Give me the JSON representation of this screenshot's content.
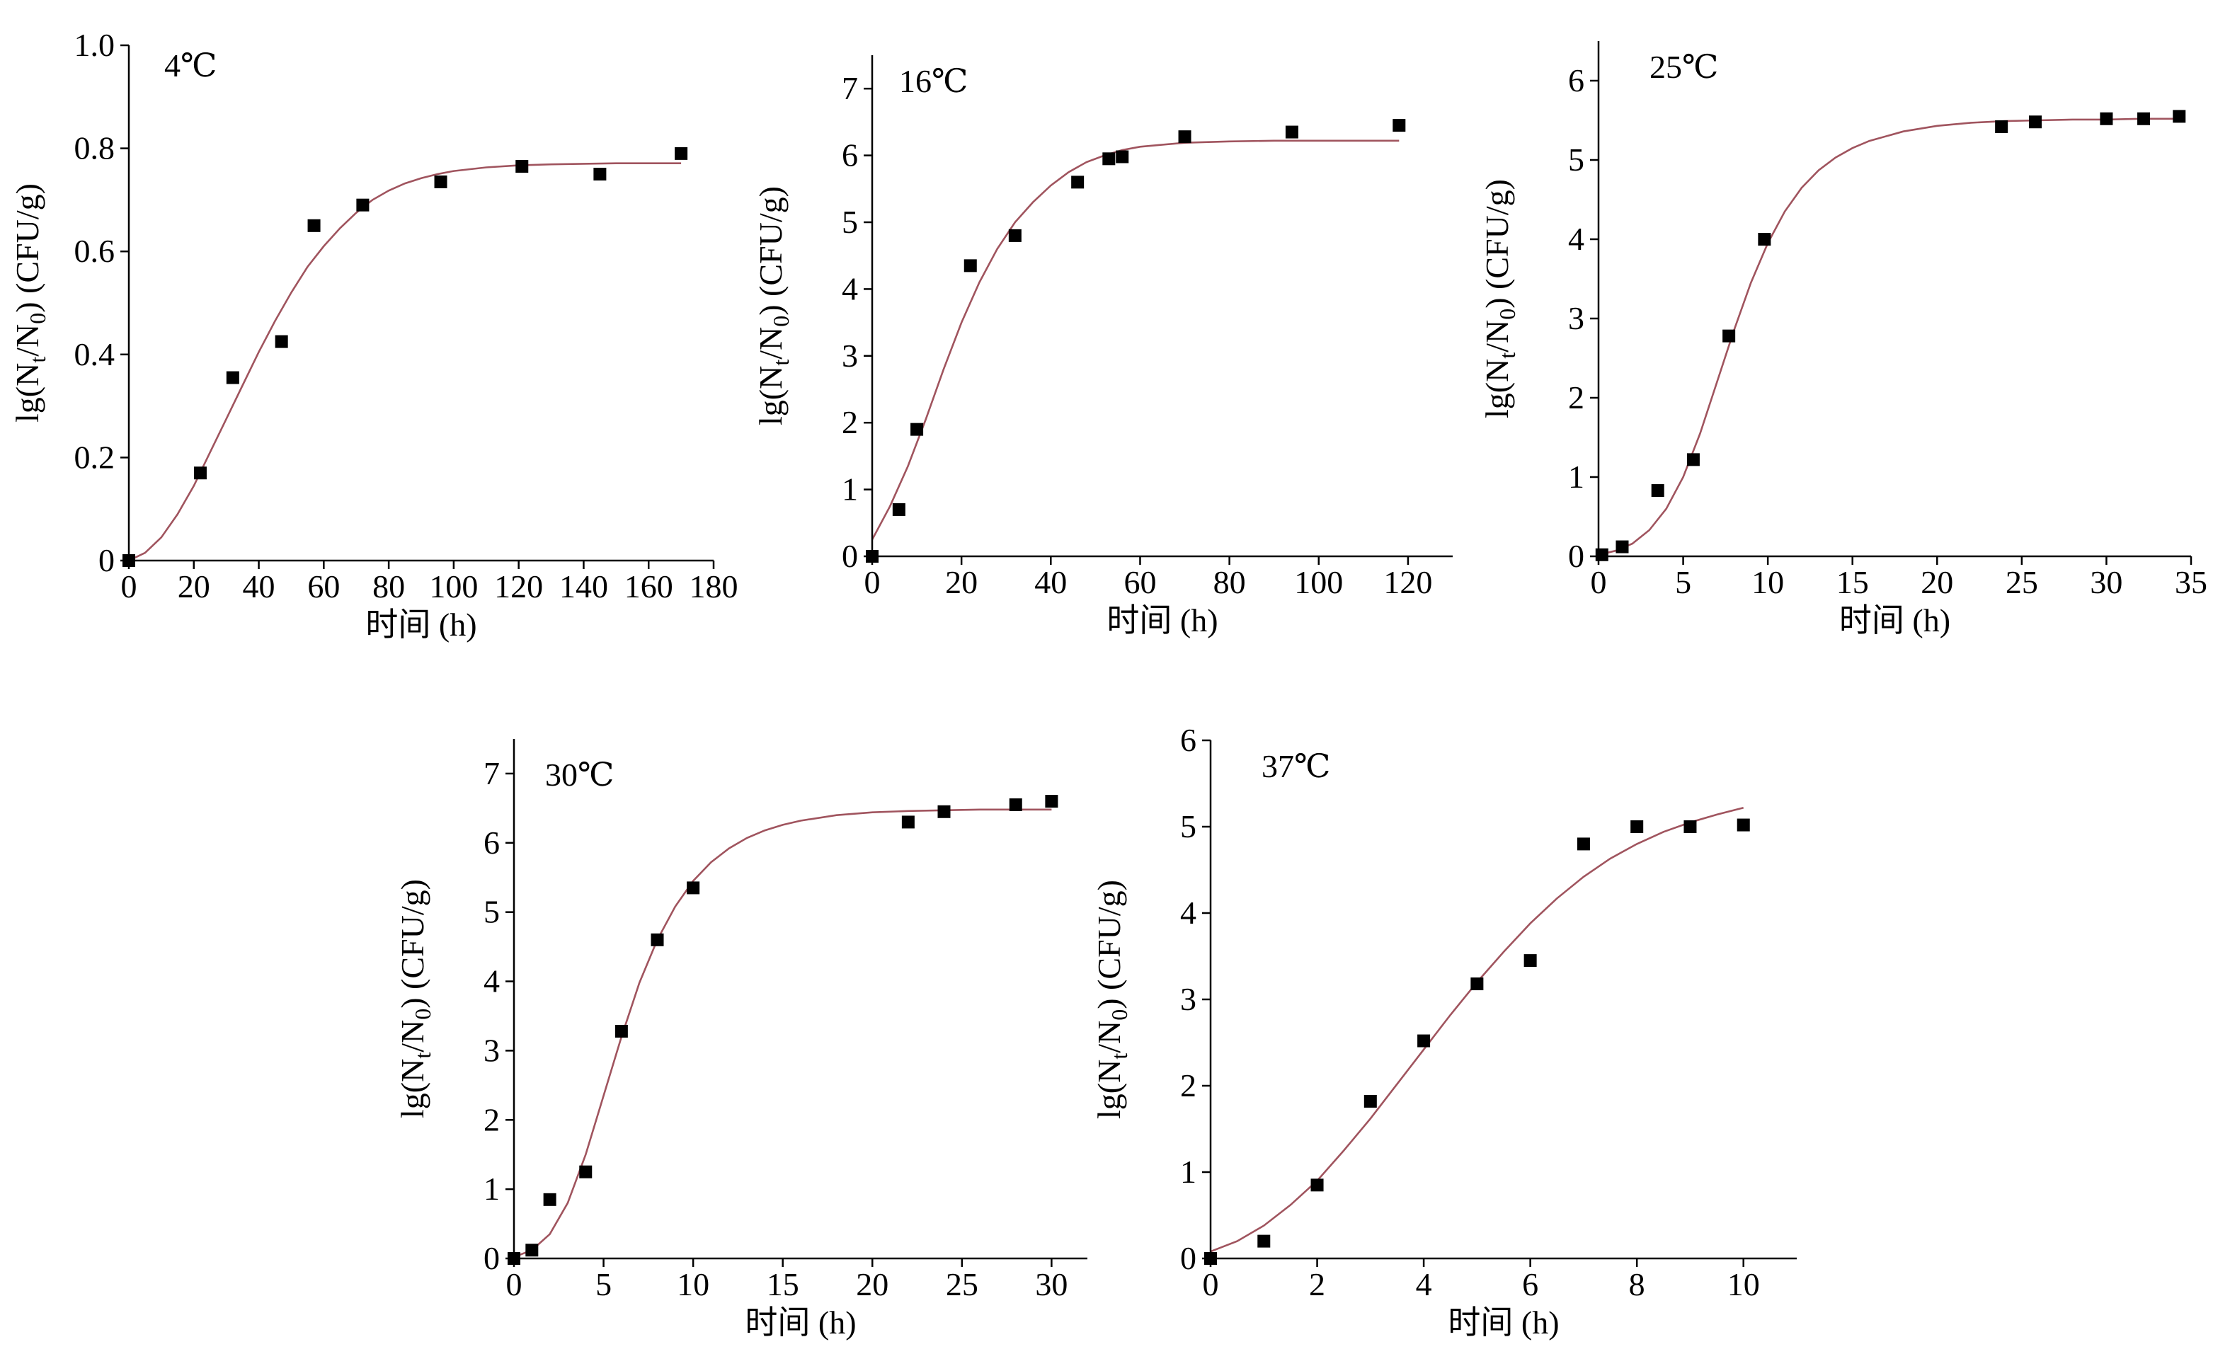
{
  "chart_data": [
    {
      "type": "scatter",
      "title": "4℃",
      "xlabel": "时间 (h)",
      "ylabel": {
        "pre": "lg(N",
        "sub1": "t",
        "mid": "/N",
        "sub2": "0",
        "post": ") (CFU/g)"
      },
      "xlim": [
        0,
        180
      ],
      "ylim": [
        0,
        1.0
      ],
      "xticks": [
        0,
        20,
        40,
        60,
        80,
        100,
        120,
        140,
        160,
        180
      ],
      "xtick_labels": [
        "0",
        "20",
        "40",
        "60",
        "80",
        "100",
        "120",
        "140",
        "160",
        "180"
      ],
      "yticks": [
        0,
        0.2,
        0.4,
        0.6,
        0.8,
        1.0
      ],
      "ytick_labels": [
        "0",
        "0.2",
        "0.4",
        "0.6",
        "0.8",
        "1.0"
      ],
      "grid": false,
      "points": {
        "x": [
          0,
          22,
          32,
          47,
          57,
          72,
          96,
          121,
          145,
          170
        ],
        "y": [
          0,
          0.17,
          0.355,
          0.425,
          0.65,
          0.69,
          0.735,
          0.765,
          0.75,
          0.79
        ]
      },
      "fit_curve": {
        "x": [
          0,
          5,
          10,
          15,
          20,
          25,
          30,
          35,
          40,
          45,
          50,
          55,
          60,
          65,
          70,
          75,
          80,
          85,
          90,
          95,
          100,
          110,
          120,
          130,
          140,
          150,
          160,
          170
        ],
        "y": [
          0,
          0.015,
          0.045,
          0.09,
          0.145,
          0.21,
          0.275,
          0.34,
          0.405,
          0.465,
          0.52,
          0.57,
          0.61,
          0.645,
          0.675,
          0.7,
          0.718,
          0.732,
          0.742,
          0.75,
          0.756,
          0.763,
          0.767,
          0.769,
          0.77,
          0.771,
          0.771,
          0.771
        ]
      }
    },
    {
      "type": "scatter",
      "title": "16℃",
      "xlabel": "时间 (h)",
      "ylabel": {
        "pre": "lg(N",
        "sub1": "t",
        "mid": "/N",
        "sub2": "0",
        "post": ") (CFU/g)"
      },
      "xlim": [
        0,
        130
      ],
      "ylim": [
        0,
        7.5
      ],
      "xticks": [
        0,
        20,
        40,
        60,
        80,
        100,
        120
      ],
      "xtick_labels": [
        "0",
        "20",
        "40",
        "60",
        "80",
        "100",
        "120"
      ],
      "yticks": [
        0,
        1,
        2,
        3,
        4,
        5,
        6,
        7
      ],
      "ytick_labels": [
        "0",
        "1",
        "2",
        "3",
        "4",
        "5",
        "6",
        "7"
      ],
      "grid": false,
      "points": {
        "x": [
          0,
          6,
          10,
          22,
          32,
          46,
          53,
          56,
          70,
          94,
          118
        ],
        "y": [
          0,
          0.7,
          1.9,
          4.35,
          4.8,
          5.6,
          5.95,
          5.98,
          6.28,
          6.35,
          6.45
        ]
      },
      "fit_curve": {
        "x": [
          0,
          4,
          8,
          12,
          16,
          20,
          24,
          28,
          32,
          36,
          40,
          44,
          48,
          52,
          56,
          60,
          70,
          80,
          90,
          100,
          110,
          118
        ],
        "y": [
          0.25,
          0.75,
          1.35,
          2.05,
          2.8,
          3.5,
          4.1,
          4.6,
          5.0,
          5.3,
          5.55,
          5.75,
          5.9,
          6.0,
          6.08,
          6.13,
          6.19,
          6.21,
          6.22,
          6.22,
          6.22,
          6.22
        ]
      }
    },
    {
      "type": "scatter",
      "title": "25℃",
      "xlabel": "时间 (h)",
      "ylabel": {
        "pre": "lg(N",
        "sub1": "t",
        "mid": "/N",
        "sub2": "0",
        "post": ") (CFU/g)"
      },
      "xlim": [
        0,
        35
      ],
      "ylim": [
        0,
        6.5
      ],
      "xticks": [
        0,
        5,
        10,
        15,
        20,
        25,
        30,
        35
      ],
      "xtick_labels": [
        "0",
        "5",
        "10",
        "15",
        "20",
        "25",
        "30",
        "35"
      ],
      "yticks": [
        0,
        1,
        2,
        3,
        4,
        5,
        6
      ],
      "ytick_labels": [
        "0",
        "1",
        "2",
        "3",
        "4",
        "5",
        "6"
      ],
      "grid": false,
      "points": {
        "x": [
          0.2,
          1.4,
          3.5,
          5.6,
          7.7,
          9.8,
          23.8,
          25.8,
          30,
          32.2,
          34.3
        ],
        "y": [
          0.02,
          0.12,
          0.83,
          1.22,
          2.78,
          4.0,
          5.42,
          5.48,
          5.52,
          5.52,
          5.55
        ]
      },
      "fit_curve": {
        "x": [
          0,
          1,
          2,
          3,
          4,
          5,
          6,
          7,
          8,
          9,
          10,
          11,
          12,
          13,
          14,
          15,
          16,
          18,
          20,
          22,
          24,
          26,
          28,
          30,
          32,
          34
        ],
        "y": [
          0.02,
          0.07,
          0.16,
          0.33,
          0.6,
          1.0,
          1.55,
          2.2,
          2.85,
          3.45,
          3.95,
          4.35,
          4.65,
          4.87,
          5.03,
          5.15,
          5.24,
          5.36,
          5.43,
          5.47,
          5.49,
          5.5,
          5.51,
          5.51,
          5.52,
          5.52
        ]
      }
    },
    {
      "type": "scatter",
      "title": "30℃",
      "xlabel": "时间 (h)",
      "ylabel": {
        "pre": "lg(N",
        "sub1": "t",
        "mid": "/N",
        "sub2": "0",
        "post": ") (CFU/g)"
      },
      "xlim": [
        0,
        32
      ],
      "ylim": [
        0,
        7.5
      ],
      "xticks": [
        0,
        5,
        10,
        15,
        20,
        25,
        30
      ],
      "xtick_labels": [
        "0",
        "5",
        "10",
        "15",
        "20",
        "25",
        "30"
      ],
      "yticks": [
        0,
        1,
        2,
        3,
        4,
        5,
        6,
        7
      ],
      "ytick_labels": [
        "0",
        "1",
        "2",
        "3",
        "4",
        "5",
        "6",
        "7"
      ],
      "grid": false,
      "points": {
        "x": [
          0,
          1,
          2,
          4,
          6,
          8,
          10,
          22,
          24,
          28,
          30
        ],
        "y": [
          0,
          0.12,
          0.85,
          1.25,
          3.28,
          4.6,
          5.35,
          6.3,
          6.45,
          6.55,
          6.6
        ]
      },
      "fit_curve": {
        "x": [
          0,
          1,
          2,
          3,
          4,
          5,
          6,
          7,
          8,
          9,
          10,
          11,
          12,
          13,
          14,
          15,
          16,
          18,
          20,
          22,
          24,
          26,
          28,
          30
        ],
        "y": [
          0.02,
          0.12,
          0.35,
          0.8,
          1.5,
          2.35,
          3.2,
          3.98,
          4.6,
          5.08,
          5.45,
          5.72,
          5.92,
          6.07,
          6.18,
          6.26,
          6.32,
          6.4,
          6.44,
          6.46,
          6.47,
          6.48,
          6.48,
          6.48
        ]
      }
    },
    {
      "type": "scatter",
      "title": "37℃",
      "xlabel": "时间 (h)",
      "ylabel": {
        "pre": "lg(N",
        "sub1": "t",
        "mid": "/N",
        "sub2": "0",
        "post": ") (CFU/g)"
      },
      "xlim": [
        0,
        11
      ],
      "ylim": [
        0,
        6
      ],
      "xticks": [
        0,
        2,
        4,
        6,
        8,
        10
      ],
      "xtick_labels": [
        "0",
        "2",
        "4",
        "6",
        "8",
        "10"
      ],
      "yticks": [
        0,
        1,
        2,
        3,
        4,
        5,
        6
      ],
      "ytick_labels": [
        "0",
        "1",
        "2",
        "3",
        "4",
        "5",
        "6"
      ],
      "grid": false,
      "points": {
        "x": [
          0,
          1,
          2,
          3,
          4,
          5,
          6,
          7,
          8,
          9,
          10
        ],
        "y": [
          0,
          0.2,
          0.85,
          1.82,
          2.52,
          3.18,
          3.45,
          4.8,
          5.0,
          5.0,
          5.02
        ]
      },
      "fit_curve": {
        "x": [
          0,
          0.5,
          1,
          1.5,
          2,
          2.5,
          3,
          3.5,
          4,
          4.5,
          5,
          5.5,
          6,
          6.5,
          7,
          7.5,
          8,
          8.5,
          9,
          9.5,
          10
        ],
        "y": [
          0.08,
          0.2,
          0.38,
          0.62,
          0.9,
          1.25,
          1.62,
          2.02,
          2.42,
          2.82,
          3.2,
          3.55,
          3.88,
          4.17,
          4.42,
          4.63,
          4.8,
          4.94,
          5.05,
          5.14,
          5.22
        ]
      }
    }
  ],
  "style": {
    "marker_color": "#000000",
    "curve_color": "#a0545e",
    "axis_color": "#000000"
  }
}
